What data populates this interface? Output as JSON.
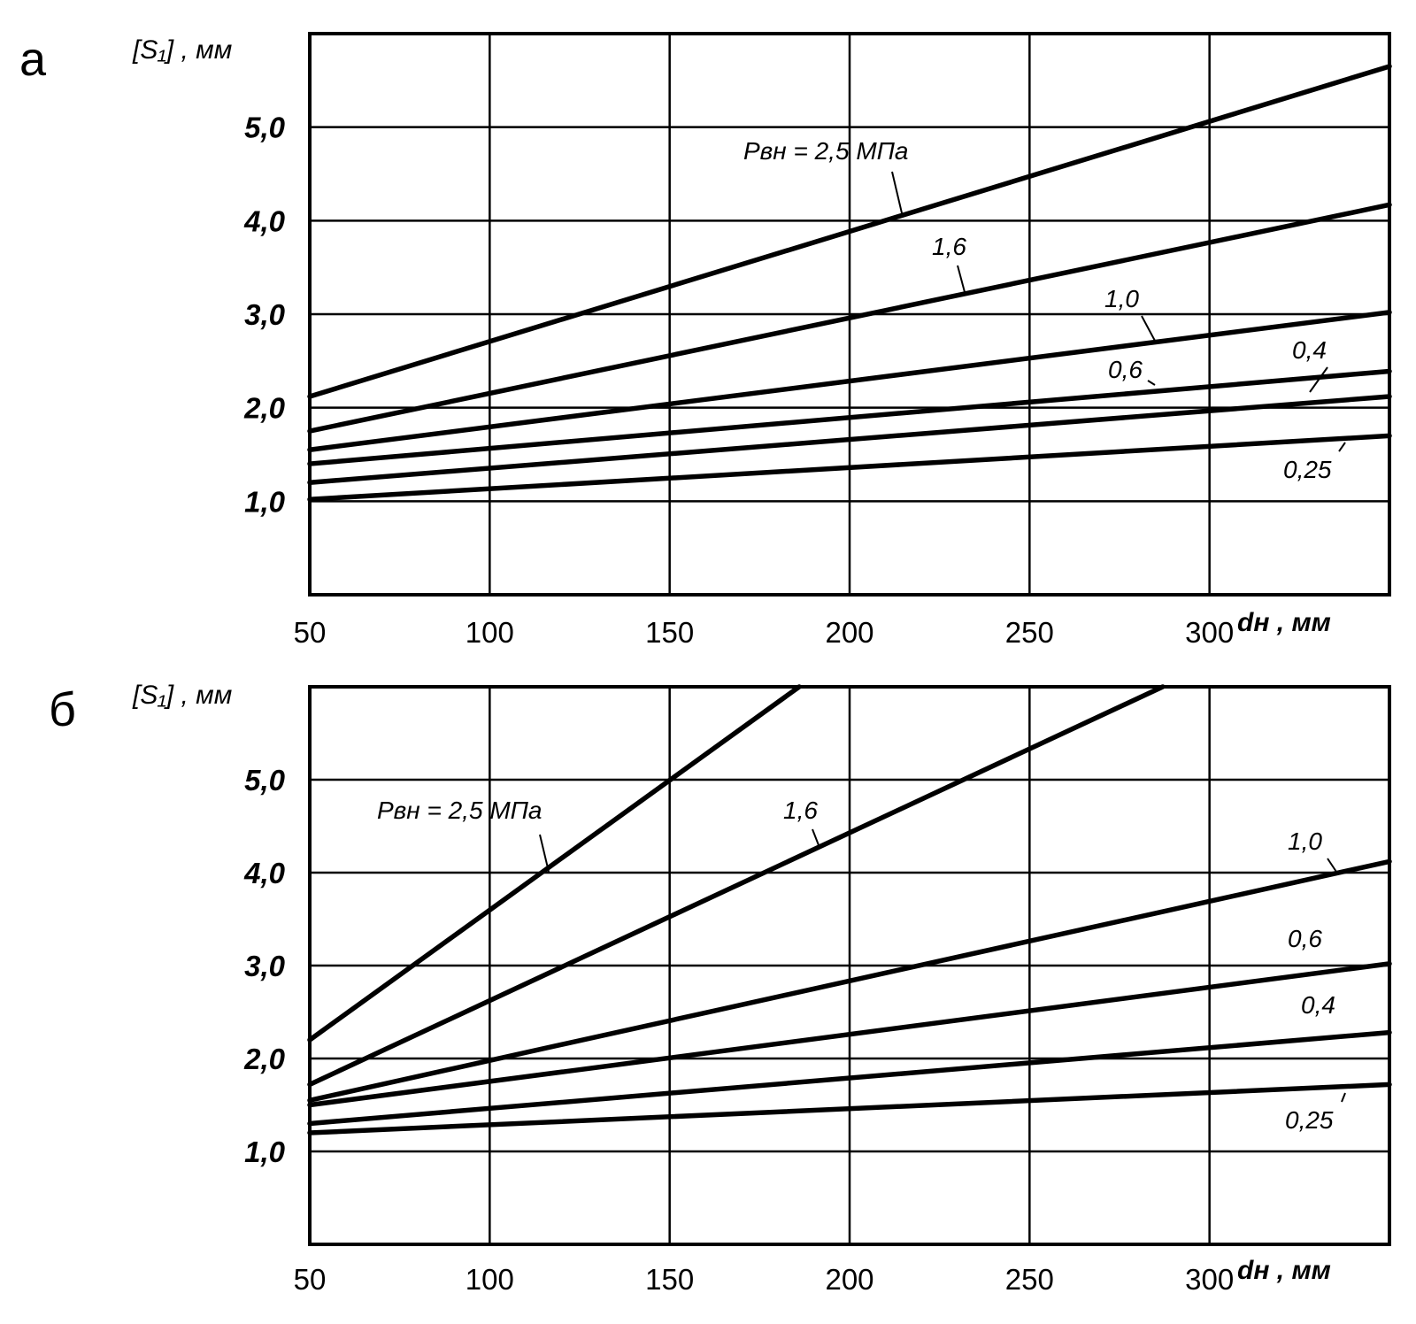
{
  "chart_data": [
    {
      "type": "line",
      "panel": "а",
      "ylabel": "[S₁] , мм",
      "xlabel": "dн , мм",
      "xlim": [
        50,
        350
      ],
      "ylim": [
        0,
        6
      ],
      "x_ticks": [
        "50",
        "100",
        "150",
        "200",
        "250",
        "300"
      ],
      "y_ticks": [
        "1,0",
        "2,0",
        "3,0",
        "4,0",
        "5,0"
      ],
      "grid": true,
      "series": [
        {
          "name": "Pвн = 2,5 МПа",
          "x": [
            50,
            350
          ],
          "y": [
            2.12,
            5.65
          ]
        },
        {
          "name": "1,6",
          "x": [
            50,
            350
          ],
          "y": [
            1.75,
            4.17
          ]
        },
        {
          "name": "1,0",
          "x": [
            50,
            350
          ],
          "y": [
            1.55,
            3.02
          ]
        },
        {
          "name": "0,6",
          "x": [
            50,
            350
          ],
          "y": [
            1.4,
            2.39
          ]
        },
        {
          "name": "0,4",
          "x": [
            50,
            350
          ],
          "y": [
            1.2,
            2.12
          ]
        },
        {
          "name": "0,25",
          "x": [
            50,
            350
          ],
          "y": [
            1.02,
            1.7
          ]
        }
      ]
    },
    {
      "type": "line",
      "panel": "б",
      "ylabel": "[S₁] , мм",
      "xlabel": "dн , мм",
      "xlim": [
        50,
        350
      ],
      "ylim": [
        0,
        6
      ],
      "x_ticks": [
        "50",
        "100",
        "150",
        "200",
        "250",
        "300"
      ],
      "y_ticks": [
        "1,0",
        "2,0",
        "3,0",
        "4,0",
        "5,0"
      ],
      "grid": true,
      "series": [
        {
          "name": "Pвн = 2,5 МПа",
          "x": [
            50,
            186
          ],
          "y": [
            2.2,
            6.0
          ]
        },
        {
          "name": "1,6",
          "x": [
            50,
            287
          ],
          "y": [
            1.72,
            6.0
          ]
        },
        {
          "name": "1,0",
          "x": [
            50,
            350
          ],
          "y": [
            1.55,
            4.12
          ]
        },
        {
          "name": "0,6",
          "x": [
            50,
            350
          ],
          "y": [
            1.5,
            3.02
          ]
        },
        {
          "name": "0,4",
          "x": [
            50,
            350
          ],
          "y": [
            1.3,
            2.28
          ]
        },
        {
          "name": "0,25",
          "x": [
            50,
            350
          ],
          "y": [
            1.2,
            1.72
          ]
        }
      ]
    }
  ]
}
